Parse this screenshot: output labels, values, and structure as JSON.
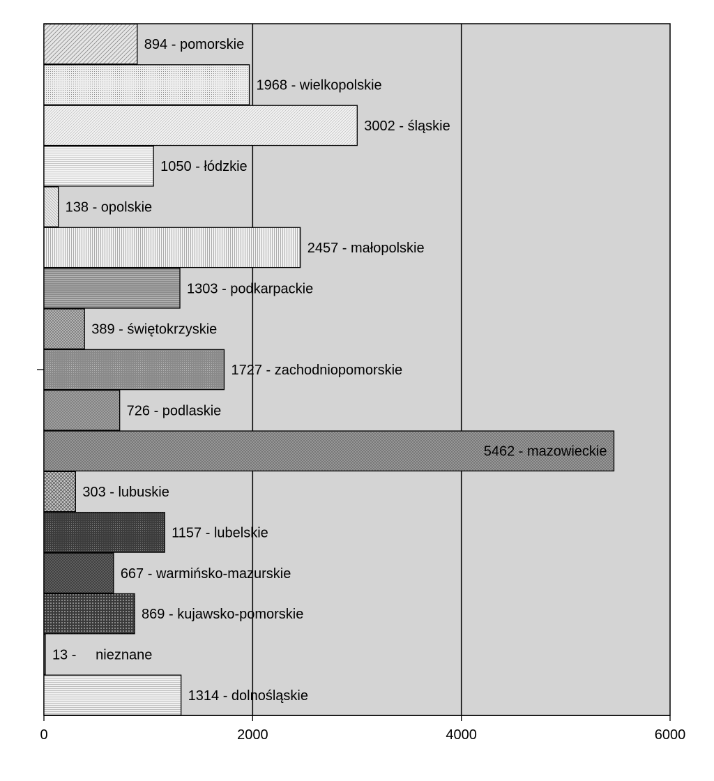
{
  "chart_data": {
    "type": "bar",
    "orientation": "horizontal",
    "grid": true,
    "legend": "none",
    "xlim": [
      0,
      6000
    ],
    "xticks": [
      0,
      2000,
      4000,
      6000
    ],
    "tick_labels": [
      "0",
      "2000",
      "4000",
      "6000"
    ],
    "plot_background": "#d4d4d4",
    "series": [
      {
        "values": [
          894,
          1968,
          3002,
          1050,
          138,
          2457,
          1303,
          389,
          1727,
          726,
          5462,
          303,
          1157,
          667,
          869,
          13,
          1314
        ]
      }
    ],
    "categories": [
      "pomorskie",
      "wielkopolskie",
      "śląskie",
      "łódzkie",
      "opolskie",
      "małopolskie",
      "podkarpackie",
      "świętokrzyskie",
      "zachodniopomorskie",
      "podlaskie",
      "mazowieckie",
      "lubuskie",
      "lubelskie",
      "warmińsko-mazurskie",
      "kujawsko-pomorskie",
      "nieznane",
      "dolnośląskie"
    ],
    "data_labels": [
      "894 - pomorskie",
      "1968 - wielkopolskie",
      "3002 - śląskie",
      "1050 - łódzkie",
      "138 - opolskie",
      "2457 - małopolskie",
      "1303 - podkarpackie",
      "389 - świętokrzyskie",
      "1727 - zachodniopomorskie",
      "726 - podlaskie",
      "5462 - mazowieckie",
      "303 - lubuskie",
      "1157 - lubelskie",
      "667 - warmińsko-mazurskie",
      "869 - kujawsko-pomorskie",
      "13 -     nieznane",
      "1314 - dolnośląskie"
    ]
  }
}
